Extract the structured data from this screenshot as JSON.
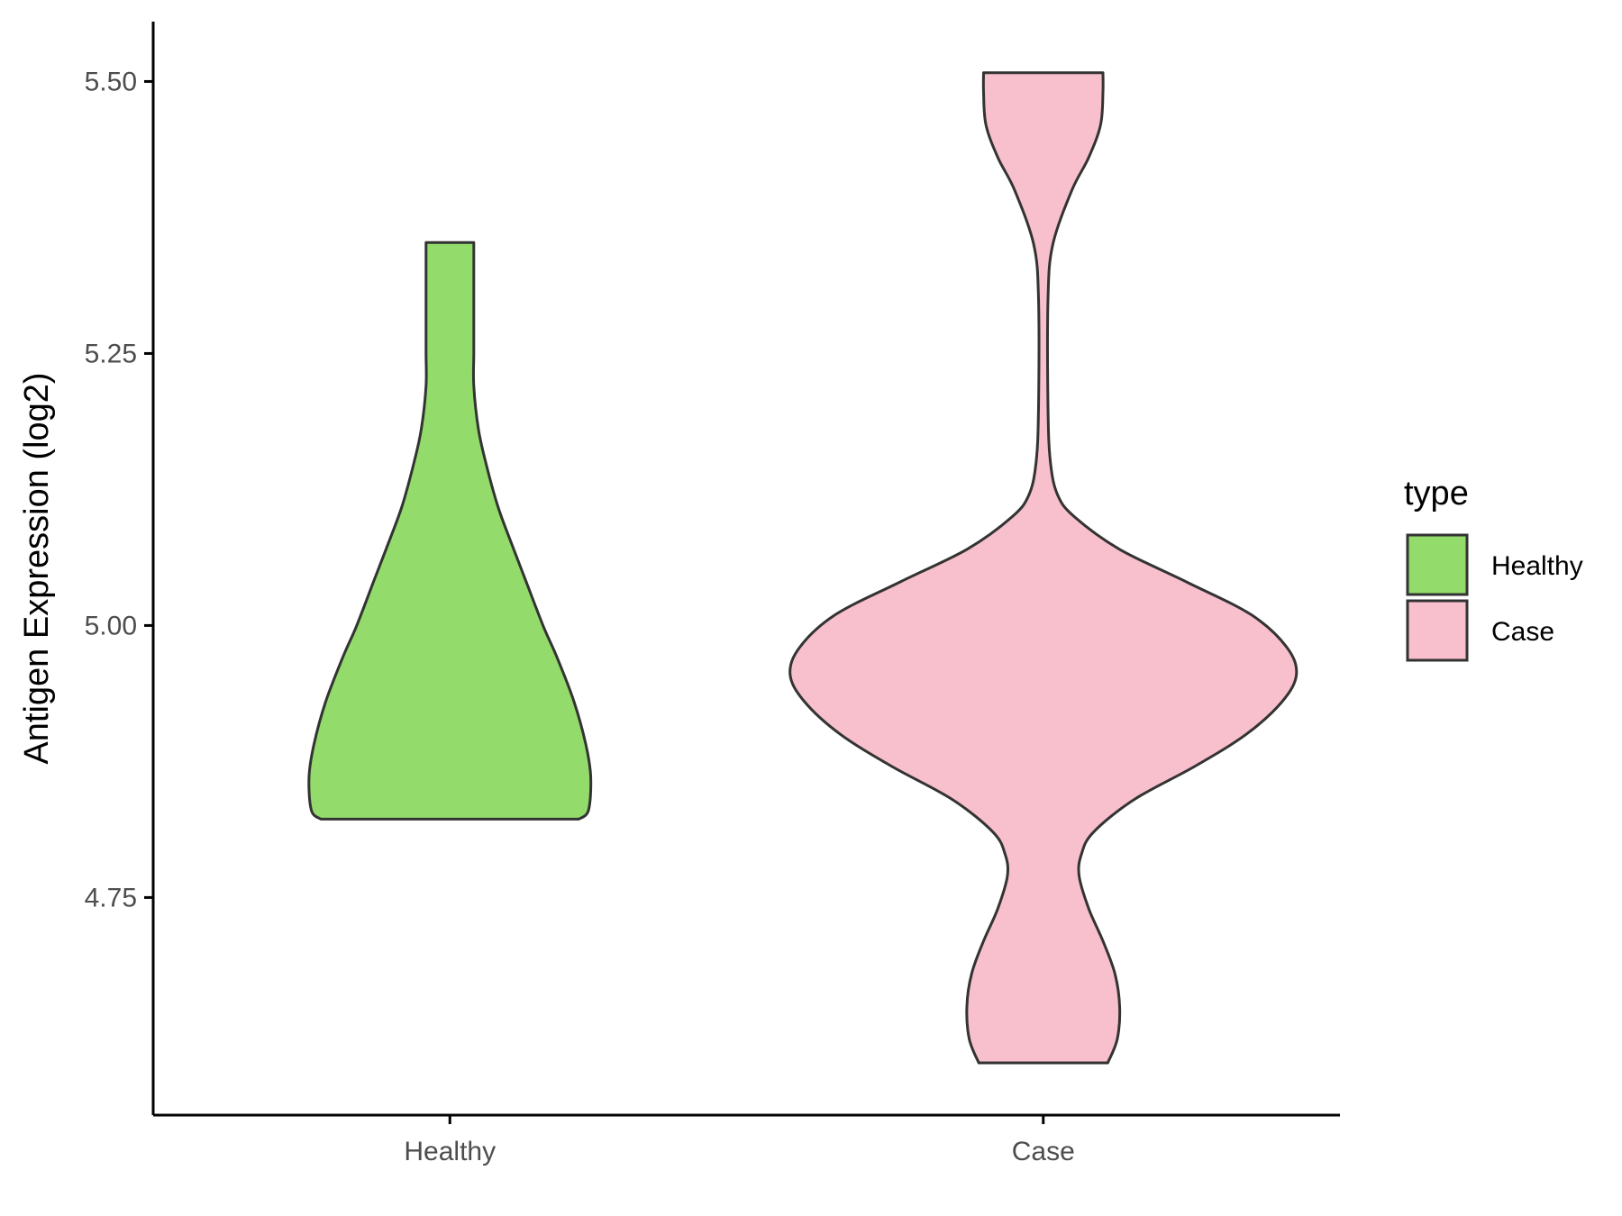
{
  "chart_data": {
    "type": "violin",
    "title": "",
    "xlabel": "",
    "ylabel": "Antigen Expression (log2)",
    "categories": [
      "Healthy",
      "Case"
    ],
    "yticks": [
      "4.75",
      "5.00",
      "5.25",
      "5.50"
    ],
    "ylim": [
      4.55,
      5.555
    ],
    "grid": false,
    "legend": {
      "title": "type",
      "position": "right",
      "entries": [
        {
          "label": "Healthy",
          "color": "#93DC6B"
        },
        {
          "label": "Case",
          "color": "#F8C0CC"
        }
      ]
    },
    "series": [
      {
        "name": "Healthy",
        "color": "#93DC6B",
        "min": 4.822,
        "max": 5.352,
        "profile": [
          [
            4.822,
            0.54
          ],
          [
            4.83,
            0.58
          ],
          [
            4.86,
            0.59
          ],
          [
            4.89,
            0.57
          ],
          [
            4.93,
            0.52
          ],
          [
            4.97,
            0.45
          ],
          [
            5.0,
            0.39
          ],
          [
            5.04,
            0.32
          ],
          [
            5.08,
            0.25
          ],
          [
            5.11,
            0.2
          ],
          [
            5.15,
            0.15
          ],
          [
            5.18,
            0.12
          ],
          [
            5.22,
            0.1
          ],
          [
            5.25,
            0.1
          ],
          [
            5.28,
            0.1
          ],
          [
            5.31,
            0.1
          ],
          [
            5.352,
            0.1
          ]
        ]
      },
      {
        "name": "Case",
        "color": "#F8C0CC",
        "min": 4.598,
        "max": 5.508,
        "profile": [
          [
            4.598,
            0.27
          ],
          [
            4.62,
            0.31
          ],
          [
            4.65,
            0.32
          ],
          [
            4.68,
            0.3
          ],
          [
            4.71,
            0.25
          ],
          [
            4.74,
            0.19
          ],
          [
            4.77,
            0.15
          ],
          [
            4.79,
            0.16
          ],
          [
            4.81,
            0.21
          ],
          [
            4.84,
            0.38
          ],
          [
            4.87,
            0.63
          ],
          [
            4.9,
            0.85
          ],
          [
            4.93,
            1.0
          ],
          [
            4.955,
            1.06
          ],
          [
            4.98,
            1.02
          ],
          [
            5.01,
            0.87
          ],
          [
            5.04,
            0.6
          ],
          [
            5.07,
            0.32
          ],
          [
            5.1,
            0.13
          ],
          [
            5.12,
            0.06
          ],
          [
            5.15,
            0.03
          ],
          [
            5.2,
            0.02
          ],
          [
            5.3,
            0.02
          ],
          [
            5.35,
            0.04
          ],
          [
            5.4,
            0.12
          ],
          [
            5.43,
            0.19
          ],
          [
            5.46,
            0.24
          ],
          [
            5.49,
            0.25
          ],
          [
            5.508,
            0.25
          ]
        ]
      }
    ]
  }
}
